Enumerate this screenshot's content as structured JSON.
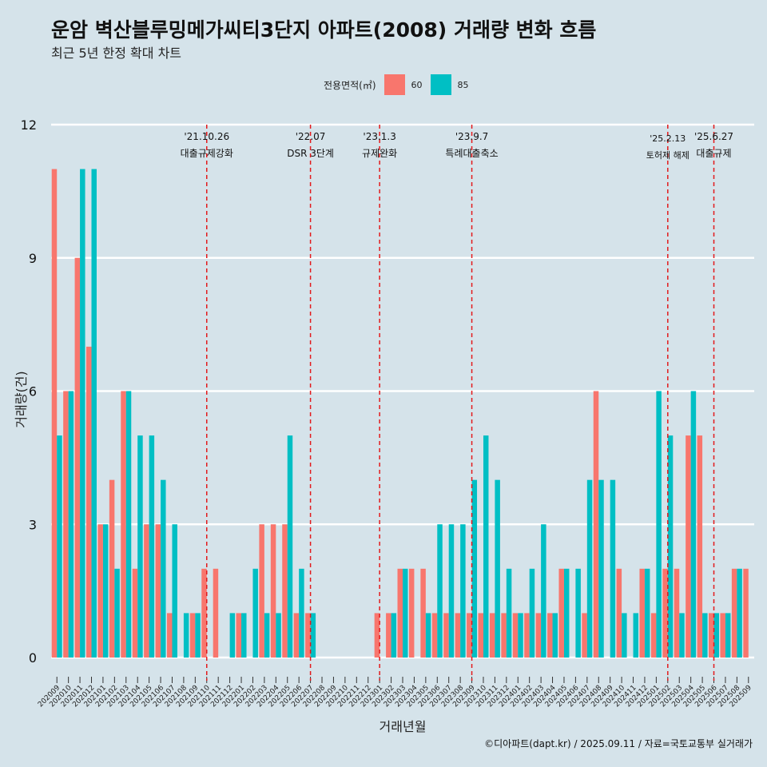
{
  "title": "운암 벽산블루밍메가씨티3단지 아파트(2008) 거래량 변화 흐름",
  "subtitle": "최근 5년 한정 확대 차트",
  "caption": "©디아파트(dapt.kr) / 2025.09.11 / 자료=국토교통부 실거래가",
  "legend": {
    "title": "전용면적(㎡)",
    "items": [
      {
        "label": "60",
        "color": "#f8766d"
      },
      {
        "label": "85",
        "color": "#00bfc4"
      }
    ]
  },
  "chart_data": {
    "type": "bar",
    "title": "운암 벽산블루밍메가씨티3단지 아파트(2008) 거래량 변화 흐름",
    "xlabel": "거래년월",
    "ylabel": "거래량(건)",
    "ylim": [
      0,
      12
    ],
    "yticks": [
      0,
      3,
      6,
      9,
      12
    ],
    "categories": [
      "202009",
      "202010",
      "202011",
      "202012",
      "202101",
      "202102",
      "202103",
      "202104",
      "202105",
      "202106",
      "202107",
      "202108",
      "202109",
      "202110",
      "202111",
      "202112",
      "202201",
      "202202",
      "202203",
      "202204",
      "202205",
      "202206",
      "202207",
      "202208",
      "202209",
      "202210",
      "202211",
      "202212",
      "202301",
      "202302",
      "202303",
      "202304",
      "202305",
      "202306",
      "202307",
      "202308",
      "202309",
      "202310",
      "202311",
      "202312",
      "202401",
      "202402",
      "202403",
      "202404",
      "202405",
      "202406",
      "202407",
      "202408",
      "202409",
      "202410",
      "202411",
      "202412",
      "202501",
      "202502",
      "202503",
      "202504",
      "202505",
      "202506",
      "202507",
      "202508",
      "202509"
    ],
    "series": [
      {
        "name": "60",
        "color": "#f8766d",
        "values": [
          11,
          6,
          9,
          7,
          3,
          4,
          6,
          2,
          3,
          3,
          1,
          0,
          1,
          2,
          2,
          0,
          1,
          0,
          3,
          3,
          3,
          1,
          1,
          0,
          0,
          0,
          0,
          0,
          1,
          1,
          2,
          2,
          2,
          1,
          1,
          1,
          1,
          1,
          1,
          1,
          1,
          1,
          1,
          1,
          2,
          0,
          1,
          6,
          0,
          2,
          0,
          2,
          1,
          2,
          2,
          5,
          5,
          1,
          1,
          2,
          2
        ]
      },
      {
        "name": "85",
        "color": "#00bfc4",
        "values": [
          5,
          6,
          11,
          11,
          3,
          2,
          6,
          5,
          5,
          4,
          3,
          1,
          1,
          0,
          0,
          1,
          1,
          2,
          1,
          1,
          5,
          2,
          1,
          0,
          0,
          0,
          0,
          0,
          0,
          1,
          2,
          0,
          1,
          3,
          3,
          3,
          4,
          5,
          4,
          2,
          1,
          2,
          3,
          1,
          2,
          2,
          4,
          4,
          4,
          1,
          1,
          2,
          6,
          5,
          1,
          6,
          1,
          1,
          1,
          2,
          0
        ]
      }
    ],
    "events": [
      {
        "date": "'21.10.26",
        "label": "대출규제강화"
      },
      {
        "date": "'22.07",
        "label": "DSR 3단계"
      },
      {
        "date": "'23.1.3",
        "label": "규제완화"
      },
      {
        "date": "'23.9.7",
        "label": "특례대출축소"
      },
      {
        "date": "'25.2.13",
        "label": "토허제 해제"
      },
      {
        "date": "'25.6.27",
        "label": "대출규제"
      }
    ]
  }
}
